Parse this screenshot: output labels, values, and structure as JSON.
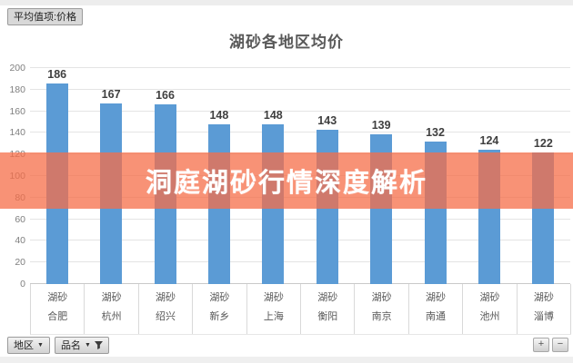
{
  "header": {
    "value_field_button": "平均值项:价格"
  },
  "chart_data": {
    "type": "bar",
    "title": "湖砂各地区均价",
    "group_label": "湖砂",
    "categories": [
      "合肥",
      "杭州",
      "绍兴",
      "新乡",
      "上海",
      "衡阳",
      "南京",
      "南通",
      "池州",
      "淄博"
    ],
    "values": [
      186,
      167,
      166,
      148,
      148,
      143,
      139,
      132,
      124,
      122
    ],
    "ylim": [
      0,
      200
    ],
    "ytick_step": 20,
    "bar_color": "#5b9bd5",
    "grid": true,
    "legend": "none",
    "xlabel": "",
    "ylabel": ""
  },
  "overlay": {
    "text": "洞庭湖砂行情深度解析",
    "band_color": "#f56e48"
  },
  "footer": {
    "region_button": "地区",
    "product_button": "品名",
    "zoom_in_label": "+",
    "zoom_out_label": "−"
  }
}
